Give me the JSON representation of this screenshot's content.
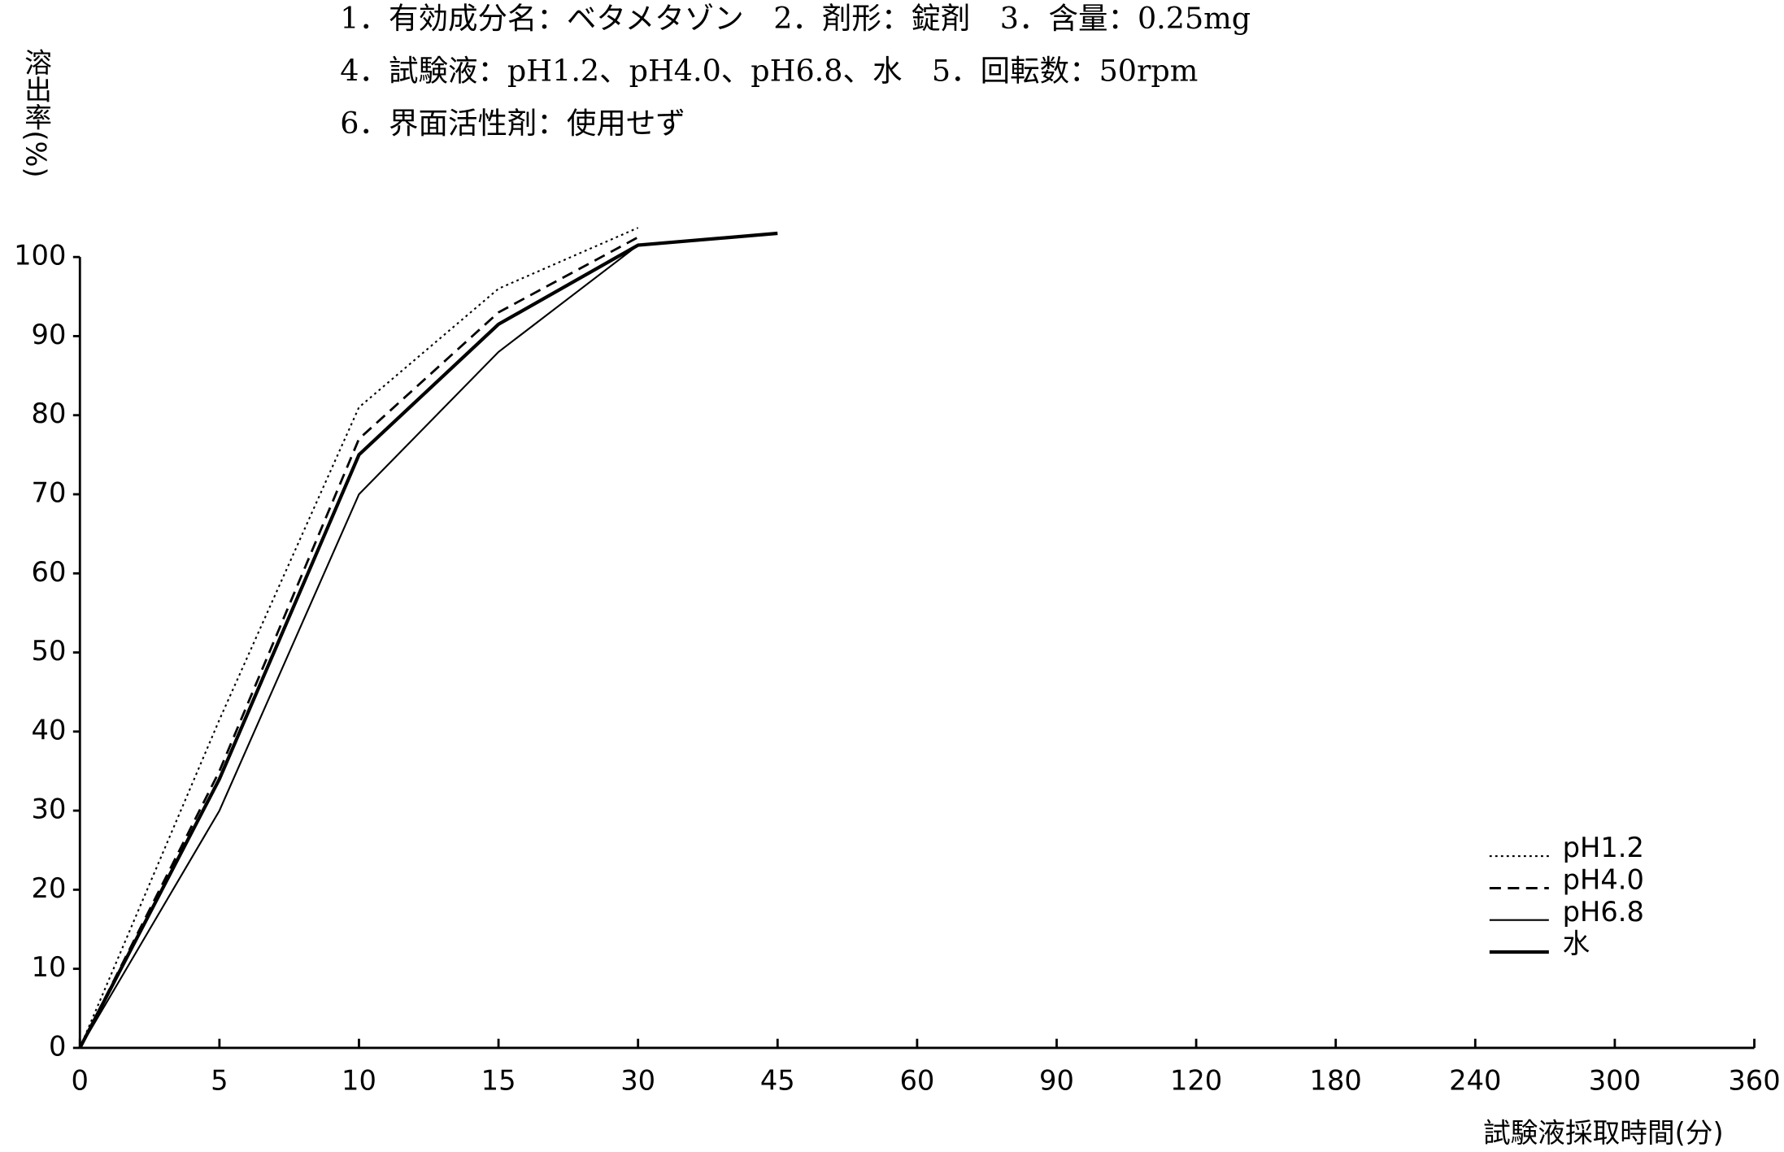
{
  "chart_data": {
    "type": "line",
    "title_lines": [
      "1．有効成分名：ベタメタゾン　2．剤形：錠剤　3．含量：0.25mg",
      "4．試験液：pH1.2、pH4.0、pH6.8、水　5．回転数：50rpm",
      "6．界面活性剤：使用せず"
    ],
    "y_label": "溶出率(%)",
    "x_label": "試験液採取時間(分)",
    "categories": [
      "0",
      "5",
      "10",
      "15",
      "30",
      "45",
      "60",
      "90",
      "120",
      "180",
      "240",
      "300",
      "360"
    ],
    "series": [
      {
        "name": "pH1.2",
        "color": "#000000",
        "dash": "dotted",
        "width": 1.5,
        "values": [
          0,
          41.5,
          81,
          96,
          103.7,
          null,
          null,
          null,
          null,
          null,
          null,
          null,
          null
        ]
      },
      {
        "name": "pH4.0",
        "color": "#000000",
        "dash": "dashed",
        "width": 2,
        "values": [
          0,
          35,
          77,
          93,
          102.5,
          null,
          null,
          null,
          null,
          null,
          null,
          null,
          null
        ]
      },
      {
        "name": "pH6.8",
        "color": "#000000",
        "dash": "solid",
        "width": 1.5,
        "values": [
          0,
          30,
          70,
          88,
          101.5,
          null,
          null,
          null,
          null,
          null,
          null,
          null,
          null
        ]
      },
      {
        "name": "水",
        "color": "#000000",
        "dash": "solid",
        "width": 3,
        "values": [
          0,
          34,
          75,
          91.5,
          101.5,
          103,
          null,
          null,
          null,
          null,
          null,
          null,
          null
        ]
      }
    ],
    "ylim": [
      0,
      100
    ],
    "yticks": [
      0,
      10,
      20,
      30,
      40,
      50,
      60,
      70,
      80,
      90,
      100
    ],
    "grid": false,
    "legend": "lower right"
  }
}
